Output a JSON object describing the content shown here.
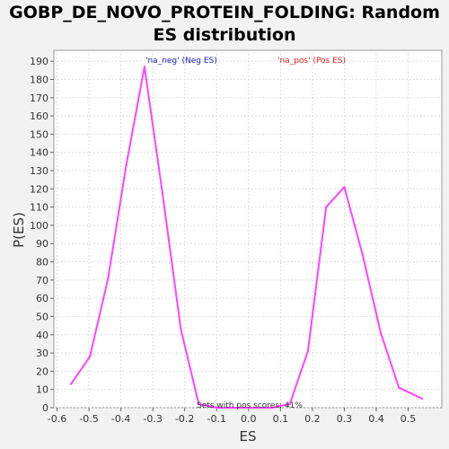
{
  "chart_data": {
    "type": "line",
    "title": "GOBP_DE_NOVO_PROTEIN_FOLDING: Random ES distribution",
    "xlabel": "ES",
    "ylabel": "P(ES)",
    "xlim": [
      -0.6,
      0.6
    ],
    "ylim": [
      0,
      196
    ],
    "xticks": [
      -0.6,
      -0.5,
      -0.4,
      -0.3,
      -0.2,
      -0.1,
      0.0,
      0.1,
      0.2,
      0.3,
      0.4,
      0.5
    ],
    "xtick_labels": [
      "-0.6",
      "-0.5",
      "-0.4",
      "-0.3",
      "-0.2",
      "-0.1",
      "0.0",
      "0.1",
      "0.2",
      "0.3",
      "0.4",
      "0.5"
    ],
    "yticks": [
      0,
      10,
      20,
      30,
      40,
      50,
      60,
      70,
      80,
      90,
      100,
      110,
      120,
      130,
      140,
      150,
      160,
      170,
      180,
      190
    ],
    "grid": true,
    "line_color": "#ff44ff",
    "series": [
      {
        "x": [
          -0.556,
          -0.497,
          -0.44,
          -0.383,
          -0.326,
          -0.27,
          -0.212,
          -0.156,
          -0.099,
          -0.042,
          0.015,
          0.072,
          0.129,
          0.186,
          0.243,
          0.3,
          0.357,
          0.414,
          0.471,
          0.543
        ],
        "values": [
          13,
          28,
          71,
          133,
          187,
          118,
          43,
          2,
          0,
          0,
          0,
          0,
          2,
          31,
          110,
          121,
          84,
          41,
          11,
          5
        ]
      }
    ],
    "legend": [
      {
        "label": "'na_neg' (Neg ES)",
        "color": "#2222bb",
        "placement": "top-left"
      },
      {
        "label": "'na_pos' (Pos ES)",
        "color": "#dd2222",
        "placement": "top-right"
      }
    ],
    "annotation": "Sets with pos scores: 41%"
  }
}
